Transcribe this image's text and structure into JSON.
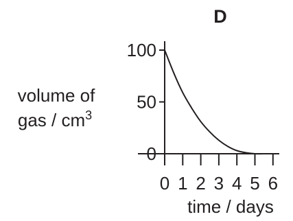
{
  "chart_data": {
    "type": "line",
    "title": "D",
    "xlabel": "time / days",
    "ylabel_line1": "volume of",
    "ylabel_line2": "gas / cm",
    "ylabel_superscript": "3",
    "x_ticks": [
      0,
      1,
      2,
      3,
      4,
      5,
      6
    ],
    "x_tick_labels": [
      "0",
      "1",
      "2",
      "3",
      "4",
      "5",
      "6"
    ],
    "y_ticks": [
      0,
      50,
      100
    ],
    "y_tick_labels": [
      "0",
      "50",
      "100"
    ],
    "xlim": [
      0,
      6.5
    ],
    "ylim": [
      0,
      100
    ],
    "grid": false,
    "series": [
      {
        "x": [
          0,
          0.5,
          1,
          1.5,
          2,
          2.5,
          3,
          3.5,
          4,
          4.5,
          5,
          5.5,
          6
        ],
        "y": [
          100,
          78,
          59,
          44,
          31,
          21,
          13,
          7,
          3,
          1,
          0,
          0,
          0
        ]
      }
    ]
  }
}
